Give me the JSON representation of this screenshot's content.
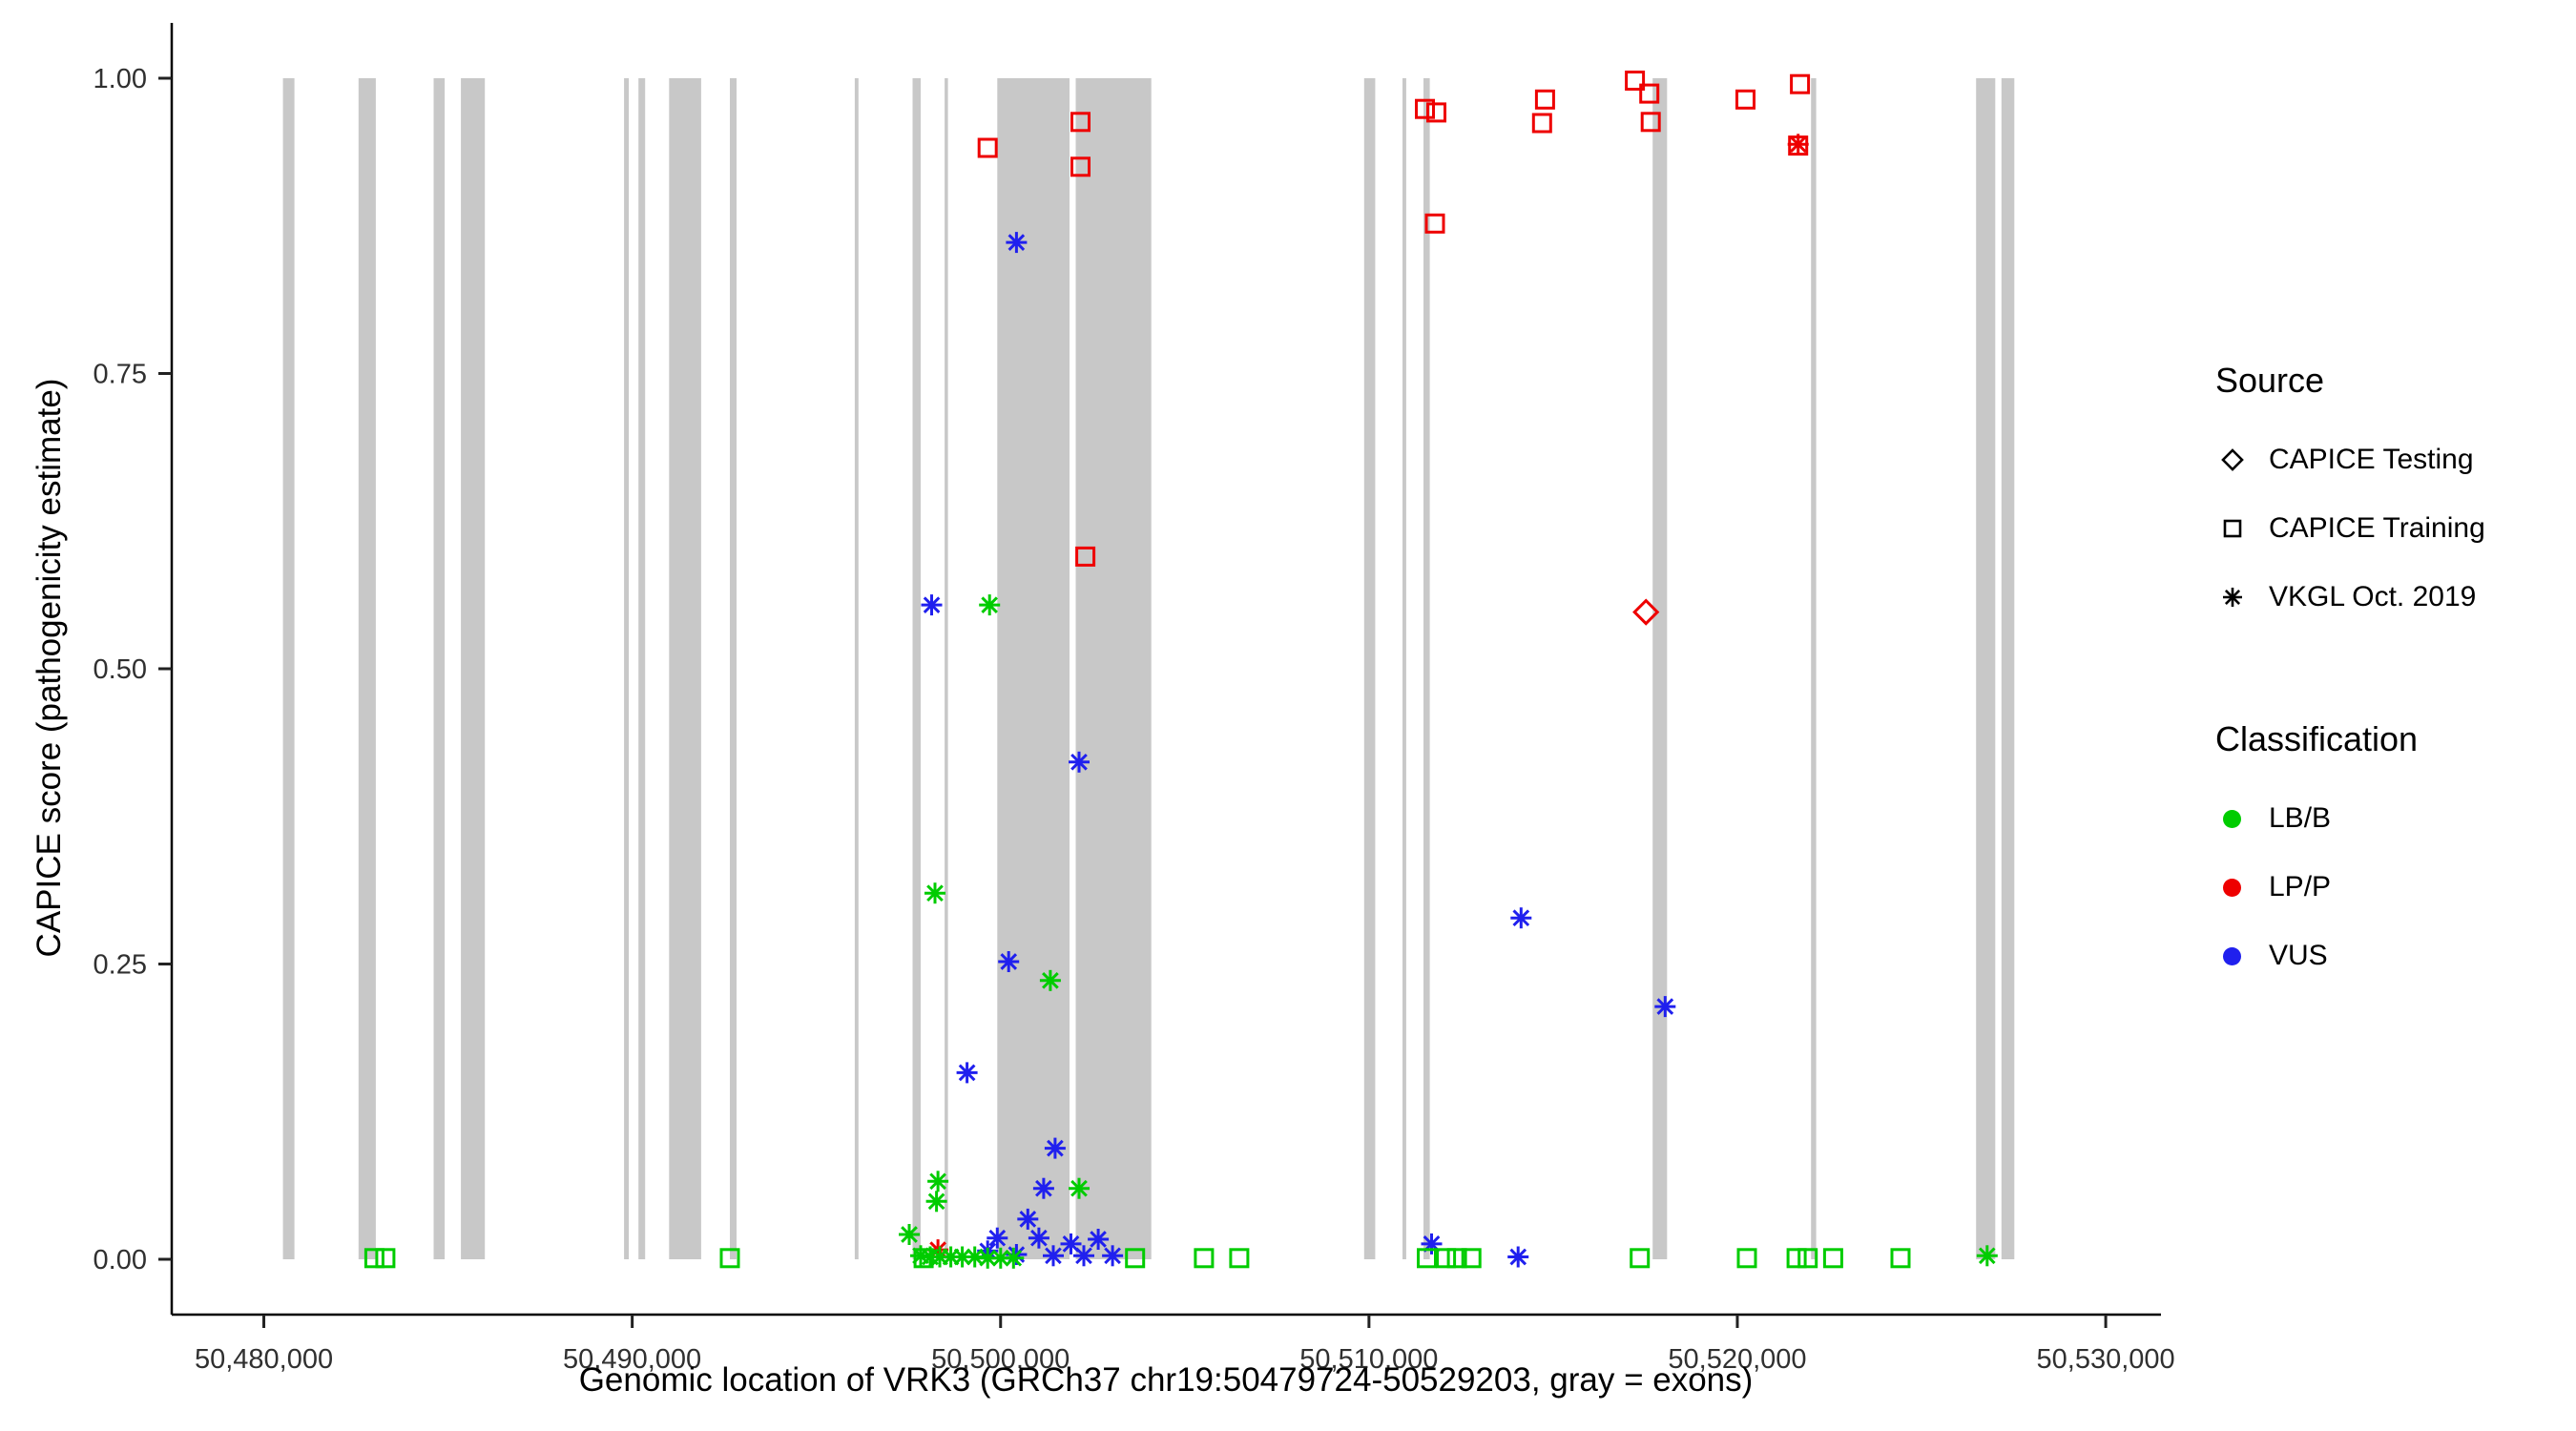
{
  "chart_data": {
    "type": "scatter",
    "title": "",
    "xlabel": "Genomic location of VRK3 (GRCh37 chr19:50479724-50529203, gray = exons)",
    "ylabel": "CAPICE score (pathogenicity estimate)",
    "xlim": [
      50477500,
      50531500
    ],
    "ylim": [
      0,
      1
    ],
    "grid": false,
    "band_color": "#c8c8c8",
    "x_ticks": [
      {
        "value": 50480000,
        "label": "50,480,000"
      },
      {
        "value": 50490000,
        "label": "50,490,000"
      },
      {
        "value": 50500000,
        "label": "50,500,000"
      },
      {
        "value": 50510000,
        "label": "50,510,000"
      },
      {
        "value": 50520000,
        "label": "50,520,000"
      },
      {
        "value": 50530000,
        "label": "50,530,000"
      }
    ],
    "y_ticks": [
      {
        "value": 0,
        "label": "0.00"
      },
      {
        "value": 0.25,
        "label": "0.25"
      },
      {
        "value": 0.5,
        "label": "0.50"
      },
      {
        "value": 0.75,
        "label": "0.75"
      },
      {
        "value": 1,
        "label": "1.00"
      }
    ],
    "exon_bands": [
      [
        50480520,
        50480830
      ],
      [
        50482570,
        50483040
      ],
      [
        50484610,
        50484910
      ],
      [
        50485350,
        50486000
      ],
      [
        50489780,
        50489910
      ],
      [
        50490170,
        50490350
      ],
      [
        50491000,
        50491870
      ],
      [
        50492650,
        50492830
      ],
      [
        50496040,
        50496140
      ],
      [
        50497610,
        50497830
      ],
      [
        50498480,
        50498570
      ],
      [
        50499910,
        50501870
      ],
      [
        50502040,
        50504090
      ],
      [
        50509870,
        50510170
      ],
      [
        50510910,
        50511010
      ],
      [
        50511480,
        50511650
      ],
      [
        50517700,
        50518090
      ],
      [
        50522000,
        50522140
      ],
      [
        50526480,
        50527000
      ],
      [
        50527170,
        50527520
      ]
    ],
    "series": [
      {
        "name": "LP/P - CAPICE Training",
        "classification": "LP/P",
        "source": "CAPICE Training",
        "marker": "square",
        "color": "#ee0000",
        "points": [
          [
            50499650,
            0.941
          ],
          [
            50502170,
            0.963
          ],
          [
            50502170,
            0.925
          ],
          [
            50502300,
            0.595
          ],
          [
            50511520,
            0.974
          ],
          [
            50511830,
            0.971
          ],
          [
            50511790,
            0.877
          ],
          [
            50514780,
            0.982
          ],
          [
            50514700,
            0.962
          ],
          [
            50517220,
            0.998
          ],
          [
            50517610,
            0.987
          ],
          [
            50517650,
            0.963
          ],
          [
            50520220,
            0.982
          ],
          [
            50521700,
            0.995
          ],
          [
            50521650,
            0.943
          ]
        ]
      },
      {
        "name": "LP/P - CAPICE Testing",
        "classification": "LP/P",
        "source": "CAPICE Testing",
        "marker": "diamond",
        "color": "#ee0000",
        "points": [
          [
            50517520,
            0.548
          ]
        ]
      },
      {
        "name": "LP/P - VKGL Oct. 2019",
        "classification": "LP/P",
        "source": "VKGL Oct. 2019",
        "marker": "asterisk",
        "color": "#ee0000",
        "points": [
          [
            50521650,
            0.944
          ],
          [
            50498300,
            0.008
          ]
        ]
      },
      {
        "name": "VUS - VKGL Oct. 2019",
        "classification": "VUS",
        "source": "VKGL Oct. 2019",
        "marker": "asterisk",
        "color": "#2020ee",
        "points": [
          [
            50500430,
            0.861
          ],
          [
            50498130,
            0.554
          ],
          [
            50502130,
            0.421
          ],
          [
            50500220,
            0.252
          ],
          [
            50499090,
            0.158
          ],
          [
            50501480,
            0.094
          ],
          [
            50501170,
            0.06
          ],
          [
            50514130,
            0.289
          ],
          [
            50518040,
            0.214
          ],
          [
            50500740,
            0.034
          ],
          [
            50499910,
            0.018
          ],
          [
            50501040,
            0.018
          ],
          [
            50501910,
            0.013
          ],
          [
            50499650,
            0.007
          ],
          [
            50500430,
            0.004
          ],
          [
            50501430,
            0.003
          ],
          [
            50502650,
            0.017
          ],
          [
            50502260,
            0.003
          ],
          [
            50503040,
            0.003
          ],
          [
            50511700,
            0.013
          ],
          [
            50514050,
            0.002
          ]
        ]
      },
      {
        "name": "LB/B - VKGL Oct. 2019",
        "classification": "LB/B",
        "source": "VKGL Oct. 2019",
        "marker": "asterisk",
        "color": "#00cc00",
        "points": [
          [
            50499700,
            0.554
          ],
          [
            50498220,
            0.31
          ],
          [
            50501350,
            0.236
          ],
          [
            50498300,
            0.066
          ],
          [
            50498260,
            0.049
          ],
          [
            50502130,
            0.06
          ],
          [
            50497520,
            0.021
          ],
          [
            50497830,
            0.003
          ],
          [
            50498090,
            0.002
          ],
          [
            50498350,
            0.002
          ],
          [
            50498650,
            0.002
          ],
          [
            50498960,
            0.002
          ],
          [
            50499300,
            0.002
          ],
          [
            50499650,
            0.001
          ],
          [
            50500000,
            0.001
          ],
          [
            50500350,
            0.001
          ],
          [
            50526780,
            0.003
          ]
        ]
      },
      {
        "name": "LB/B - CAPICE Training",
        "classification": "LB/B",
        "source": "CAPICE Training",
        "marker": "square",
        "color": "#00cc00",
        "points": [
          [
            50483000,
            0.001
          ],
          [
            50483300,
            0.001
          ],
          [
            50492650,
            0.001
          ],
          [
            50497910,
            0.001
          ],
          [
            50503650,
            0.001
          ],
          [
            50505520,
            0.001
          ],
          [
            50506480,
            0.001
          ],
          [
            50511570,
            0.001
          ],
          [
            50512090,
            0.001
          ],
          [
            50512390,
            0.001
          ],
          [
            50512780,
            0.001
          ],
          [
            50517350,
            0.001
          ],
          [
            50520260,
            0.001
          ],
          [
            50521610,
            0.001
          ],
          [
            50521910,
            0.001
          ],
          [
            50522600,
            0.001
          ],
          [
            50524430,
            0.001
          ]
        ]
      }
    ]
  },
  "legend": {
    "source": {
      "title": "Source",
      "items": [
        {
          "label": "CAPICE Testing",
          "marker": "diamond"
        },
        {
          "label": "CAPICE Training",
          "marker": "square"
        },
        {
          "label": "VKGL Oct. 2019",
          "marker": "asterisk"
        }
      ]
    },
    "classification": {
      "title": "Classification",
      "items": [
        {
          "label": "LB/B",
          "color": "#00cc00"
        },
        {
          "label": "LP/P",
          "color": "#ee0000"
        },
        {
          "label": "VUS",
          "color": "#2020ee"
        }
      ]
    }
  }
}
